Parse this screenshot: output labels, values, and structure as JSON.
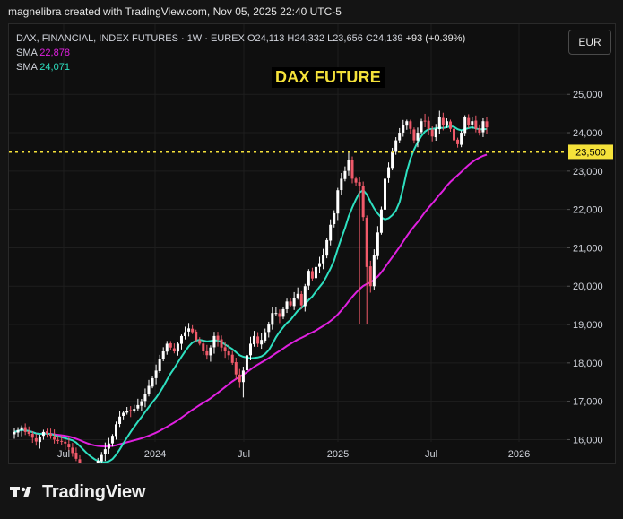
{
  "header": {
    "attribution": "magnelibra created with TradingView.com, Nov 05, 2025 22:40 UTC-5"
  },
  "legend": {
    "symbol": "DAX, FINANCIAL, INDEX FUTURES · 1W · EUREX",
    "open_label": "O",
    "open": "24,113",
    "high_label": "H",
    "high": "24,332",
    "low_label": "L",
    "low": "23,656",
    "close_label": "C",
    "close": "24,139",
    "change": "+93 (+0.39%)",
    "sma1_label": "SMA",
    "sma1_value": "22,878",
    "sma2_label": "SMA",
    "sma2_value": "24,071"
  },
  "currency_button": "EUR",
  "footer": {
    "brand": "TradingView"
  },
  "colors": {
    "background": "#0f0f0f",
    "candle_up": "#ffffff",
    "candle_down": "#f05a6a",
    "sma_slow": "#e020e0",
    "sma_fast": "#2ee0c0",
    "level_line": "#f5e23a",
    "grid": "#1e1e1e",
    "axis_text": "#d1d4dc"
  },
  "chart_data": {
    "type": "candlestick",
    "title": "DAX FUTURE",
    "timeframe": "1W",
    "x_tick_labels": [
      "Jul",
      "2024",
      "Jul",
      "2025",
      "Jul",
      "2026"
    ],
    "y_tick_labels": [
      "16,000",
      "17,000",
      "18,000",
      "19,000",
      "20,000",
      "21,000",
      "22,000",
      "23,000",
      "24,000",
      "25,000"
    ],
    "ylim": [
      15800,
      25400
    ],
    "horizontal_level": {
      "value": 23500,
      "label": "23,500",
      "style": "dotted"
    },
    "grid": true,
    "close_series": [
      16200,
      16250,
      16320,
      16200,
      16150,
      16050,
      15950,
      16080,
      16200,
      16150,
      16100,
      16000,
      15980,
      15950,
      15900,
      15800,
      15650,
      15500,
      15300,
      15180,
      15160,
      15200,
      15300,
      15450,
      15600,
      15750,
      15900,
      16100,
      16400,
      16600,
      16700,
      16750,
      16750,
      16800,
      16900,
      17000,
      17200,
      17400,
      17600,
      17800,
      18100,
      18300,
      18500,
      18400,
      18300,
      18500,
      18700,
      18800,
      18900,
      18800,
      18600,
      18500,
      18300,
      18200,
      18400,
      18700,
      18600,
      18400,
      18300,
      18200,
      18000,
      17700,
      17500,
      17800,
      18200,
      18500,
      18700,
      18500,
      18600,
      18800,
      19000,
      19300,
      19300,
      19200,
      19400,
      19600,
      19500,
      19700,
      19800,
      19500,
      20000,
      20400,
      20200,
      20500,
      20600,
      20800,
      21200,
      21600,
      21900,
      22500,
      22800,
      23000,
      23300,
      22800,
      22700,
      22600,
      21800,
      20500,
      20000,
      20800,
      21400,
      22000,
      22800,
      23100,
      23500,
      23800,
      24000,
      24200,
      24300,
      24100,
      23800,
      24000,
      24300,
      24300,
      24100,
      23900,
      24100,
      24400,
      24200,
      24300,
      24100,
      23800,
      23700,
      24000,
      24400,
      24200,
      24300,
      24100,
      24000,
      24300,
      24139
    ],
    "series": [
      {
        "name": "SMA",
        "last_value": "22,878"
      },
      {
        "name": "SMA",
        "last_value": "24,071"
      }
    ]
  }
}
